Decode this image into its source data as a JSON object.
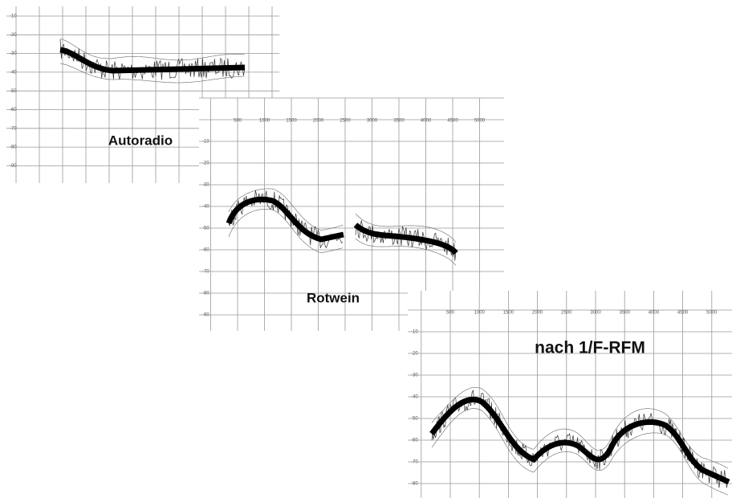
{
  "panels": [
    {
      "label": "Autoradio",
      "y_labels": [
        "-10",
        "-20",
        "-30",
        "-40",
        "-50",
        "-60",
        "-70",
        "-80",
        "-90"
      ]
    },
    {
      "label": "Rotwein",
      "x_labels": [
        "500",
        "1000",
        "1500",
        "2000",
        "2500",
        "3000",
        "3500",
        "4000",
        "4500",
        "5000"
      ],
      "y_labels": [
        "-10",
        "-20",
        "-30",
        "-40",
        "-50",
        "-60",
        "-70",
        "-80",
        "-90"
      ]
    },
    {
      "label": "nach 1/F-RFM",
      "x_labels": [
        "500",
        "1000",
        "1500",
        "2000",
        "2500",
        "3000",
        "3500",
        "4000",
        "4500",
        "5000"
      ],
      "y_labels": [
        "-10",
        "-20",
        "-30",
        "-40",
        "-50",
        "-60",
        "-70",
        "-80"
      ]
    }
  ]
}
